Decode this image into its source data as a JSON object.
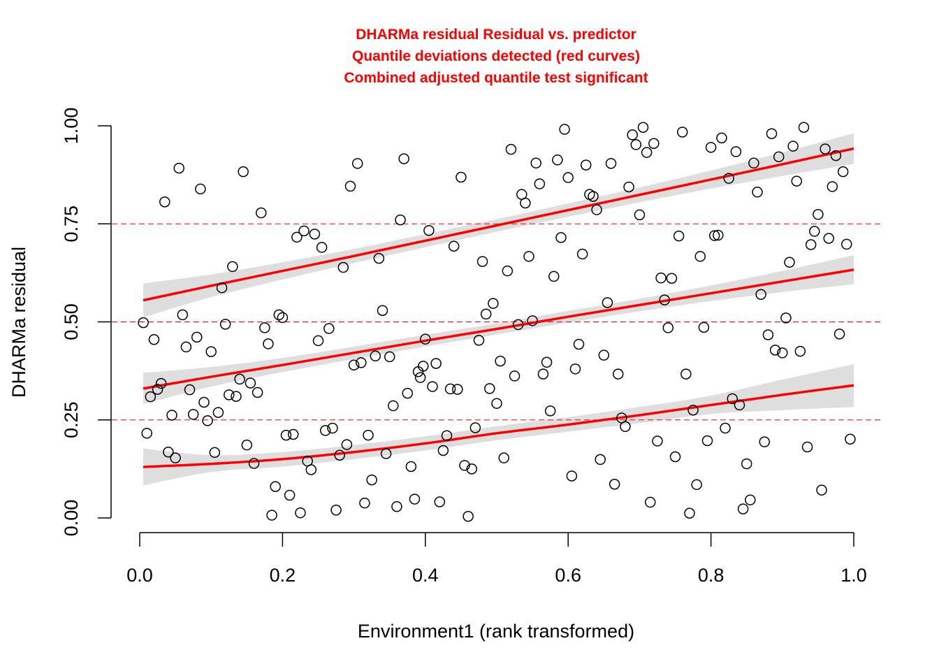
{
  "chart_data": {
    "type": "scatter",
    "title": [
      "DHARMa residual Residual vs. predictor",
      "Quantile deviations detected (red curves)",
      "Combined adjusted quantile test significant"
    ],
    "xlabel": "Environment1 (rank transformed)",
    "ylabel": "DHARMa residual",
    "xlim": [
      0,
      1
    ],
    "ylim": [
      0,
      1
    ],
    "xticks": [
      "0.0",
      "0.2",
      "0.4",
      "0.6",
      "0.8",
      "1.0"
    ],
    "yticks": [
      "0.00",
      "0.25",
      "0.50",
      "0.75",
      "1.00"
    ],
    "grid": false,
    "colors": {
      "title": "#ff0000",
      "curves": "#ff0000",
      "band": "#dedede",
      "points": "#000000",
      "reference": "#ff0000"
    },
    "reference_lines": [
      0.25,
      0.5,
      0.75
    ],
    "points": [
      [
        0.005,
        0.498
      ],
      [
        0.01,
        0.216
      ],
      [
        0.015,
        0.309
      ],
      [
        0.02,
        0.455
      ],
      [
        0.025,
        0.328
      ],
      [
        0.03,
        0.343
      ],
      [
        0.035,
        0.806
      ],
      [
        0.04,
        0.168
      ],
      [
        0.045,
        0.262
      ],
      [
        0.05,
        0.153
      ],
      [
        0.055,
        0.892
      ],
      [
        0.06,
        0.518
      ],
      [
        0.065,
        0.436
      ],
      [
        0.07,
        0.327
      ],
      [
        0.075,
        0.264
      ],
      [
        0.08,
        0.461
      ],
      [
        0.085,
        0.839
      ],
      [
        0.09,
        0.295
      ],
      [
        0.095,
        0.248
      ],
      [
        0.1,
        0.424
      ],
      [
        0.105,
        0.167
      ],
      [
        0.11,
        0.269
      ],
      [
        0.115,
        0.587
      ],
      [
        0.12,
        0.494
      ],
      [
        0.125,
        0.314
      ],
      [
        0.13,
        0.641
      ],
      [
        0.135,
        0.31
      ],
      [
        0.14,
        0.354
      ],
      [
        0.145,
        0.883
      ],
      [
        0.15,
        0.186
      ],
      [
        0.155,
        0.344
      ],
      [
        0.16,
        0.139
      ],
      [
        0.165,
        0.32
      ],
      [
        0.17,
        0.778
      ],
      [
        0.175,
        0.485
      ],
      [
        0.18,
        0.444
      ],
      [
        0.185,
        0.007
      ],
      [
        0.19,
        0.08
      ],
      [
        0.195,
        0.518
      ],
      [
        0.2,
        0.511
      ],
      [
        0.205,
        0.211
      ],
      [
        0.21,
        0.058
      ],
      [
        0.215,
        0.213
      ],
      [
        0.22,
        0.716
      ],
      [
        0.225,
        0.013
      ],
      [
        0.23,
        0.732
      ],
      [
        0.235,
        0.145
      ],
      [
        0.24,
        0.123
      ],
      [
        0.245,
        0.724
      ],
      [
        0.25,
        0.452
      ],
      [
        0.255,
        0.69
      ],
      [
        0.26,
        0.223
      ],
      [
        0.265,
        0.483
      ],
      [
        0.27,
        0.229
      ],
      [
        0.275,
        0.02
      ],
      [
        0.28,
        0.16
      ],
      [
        0.285,
        0.639
      ],
      [
        0.29,
        0.187
      ],
      [
        0.295,
        0.846
      ],
      [
        0.3,
        0.39
      ],
      [
        0.305,
        0.904
      ],
      [
        0.31,
        0.396
      ],
      [
        0.315,
        0.038
      ],
      [
        0.32,
        0.211
      ],
      [
        0.325,
        0.097
      ],
      [
        0.33,
        0.413
      ],
      [
        0.335,
        0.662
      ],
      [
        0.34,
        0.529
      ],
      [
        0.345,
        0.164
      ],
      [
        0.35,
        0.411
      ],
      [
        0.355,
        0.286
      ],
      [
        0.36,
        0.029
      ],
      [
        0.365,
        0.76
      ],
      [
        0.37,
        0.916
      ],
      [
        0.375,
        0.318
      ],
      [
        0.38,
        0.131
      ],
      [
        0.385,
        0.048
      ],
      [
        0.39,
        0.373
      ],
      [
        0.393,
        0.358
      ],
      [
        0.397,
        0.387
      ],
      [
        0.4,
        0.456
      ],
      [
        0.405,
        0.733
      ],
      [
        0.41,
        0.335
      ],
      [
        0.415,
        0.394
      ],
      [
        0.42,
        0.041
      ],
      [
        0.425,
        0.172
      ],
      [
        0.43,
        0.21
      ],
      [
        0.435,
        0.329
      ],
      [
        0.44,
        0.693
      ],
      [
        0.445,
        0.328
      ],
      [
        0.45,
        0.869
      ],
      [
        0.455,
        0.134
      ],
      [
        0.46,
        0.004
      ],
      [
        0.465,
        0.125
      ],
      [
        0.47,
        0.23
      ],
      [
        0.475,
        0.453
      ],
      [
        0.48,
        0.654
      ],
      [
        0.485,
        0.52
      ],
      [
        0.49,
        0.33
      ],
      [
        0.495,
        0.547
      ],
      [
        0.5,
        0.292
      ],
      [
        0.505,
        0.4
      ],
      [
        0.51,
        0.153
      ],
      [
        0.515,
        0.63
      ],
      [
        0.52,
        0.94
      ],
      [
        0.525,
        0.362
      ],
      [
        0.53,
        0.493
      ],
      [
        0.535,
        0.825
      ],
      [
        0.54,
        0.803
      ],
      [
        0.545,
        0.667
      ],
      [
        0.55,
        0.503
      ],
      [
        0.555,
        0.905
      ],
      [
        0.56,
        0.852
      ],
      [
        0.565,
        0.367
      ],
      [
        0.57,
        0.397
      ],
      [
        0.575,
        0.273
      ],
      [
        0.58,
        0.616
      ],
      [
        0.585,
        0.913
      ],
      [
        0.59,
        0.715
      ],
      [
        0.595,
        0.991
      ],
      [
        0.6,
        0.868
      ],
      [
        0.605,
        0.107
      ],
      [
        0.61,
        0.38
      ],
      [
        0.615,
        0.443
      ],
      [
        0.62,
        0.673
      ],
      [
        0.625,
        0.9
      ],
      [
        0.63,
        0.825
      ],
      [
        0.635,
        0.82
      ],
      [
        0.64,
        0.786
      ],
      [
        0.645,
        0.149
      ],
      [
        0.65,
        0.415
      ],
      [
        0.655,
        0.549
      ],
      [
        0.66,
        0.904
      ],
      [
        0.665,
        0.086
      ],
      [
        0.67,
        0.367
      ],
      [
        0.675,
        0.255
      ],
      [
        0.68,
        0.233
      ],
      [
        0.685,
        0.844
      ],
      [
        0.69,
        0.977
      ],
      [
        0.695,
        0.952
      ],
      [
        0.7,
        0.773
      ],
      [
        0.705,
        0.996
      ],
      [
        0.71,
        0.932
      ],
      [
        0.715,
        0.04
      ],
      [
        0.72,
        0.955
      ],
      [
        0.725,
        0.196
      ],
      [
        0.73,
        0.612
      ],
      [
        0.735,
        0.556
      ],
      [
        0.74,
        0.485
      ],
      [
        0.745,
        0.611
      ],
      [
        0.75,
        0.156
      ],
      [
        0.755,
        0.719
      ],
      [
        0.76,
        0.984
      ],
      [
        0.765,
        0.367
      ],
      [
        0.77,
        0.012
      ],
      [
        0.775,
        0.275
      ],
      [
        0.78,
        0.085
      ],
      [
        0.785,
        0.667
      ],
      [
        0.79,
        0.486
      ],
      [
        0.795,
        0.197
      ],
      [
        0.8,
        0.945
      ],
      [
        0.805,
        0.72
      ],
      [
        0.81,
        0.721
      ],
      [
        0.815,
        0.969
      ],
      [
        0.82,
        0.229
      ],
      [
        0.825,
        0.866
      ],
      [
        0.83,
        0.304
      ],
      [
        0.835,
        0.934
      ],
      [
        0.84,
        0.288
      ],
      [
        0.845,
        0.023
      ],
      [
        0.85,
        0.138
      ],
      [
        0.855,
        0.046
      ],
      [
        0.86,
        0.905
      ],
      [
        0.865,
        0.831
      ],
      [
        0.87,
        0.57
      ],
      [
        0.875,
        0.194
      ],
      [
        0.88,
        0.467
      ],
      [
        0.885,
        0.98
      ],
      [
        0.89,
        0.428
      ],
      [
        0.895,
        0.921
      ],
      [
        0.9,
        0.421
      ],
      [
        0.905,
        0.51
      ],
      [
        0.91,
        0.652
      ],
      [
        0.915,
        0.948
      ],
      [
        0.92,
        0.859
      ],
      [
        0.925,
        0.425
      ],
      [
        0.93,
        0.996
      ],
      [
        0.935,
        0.181
      ],
      [
        0.94,
        0.697
      ],
      [
        0.945,
        0.731
      ],
      [
        0.95,
        0.774
      ],
      [
        0.955,
        0.071
      ],
      [
        0.96,
        0.941
      ],
      [
        0.965,
        0.713
      ],
      [
        0.97,
        0.845
      ],
      [
        0.975,
        0.924
      ],
      [
        0.98,
        0.469
      ],
      [
        0.985,
        0.883
      ],
      [
        0.99,
        0.698
      ],
      [
        0.995,
        0.201
      ]
    ],
    "quantile_curves": [
      {
        "quantile": 0.25,
        "fit": [
          [
            0.005,
            0.13
          ],
          [
            0.1,
            0.138
          ],
          [
            0.2,
            0.15
          ],
          [
            0.3,
            0.168
          ],
          [
            0.4,
            0.19
          ],
          [
            0.5,
            0.216
          ],
          [
            0.6,
            0.238
          ],
          [
            0.7,
            0.262
          ],
          [
            0.8,
            0.288
          ],
          [
            0.9,
            0.314
          ],
          [
            1.0,
            0.338
          ]
        ],
        "lower": [
          [
            0.005,
            0.083
          ],
          [
            0.1,
            0.117
          ],
          [
            0.2,
            0.131
          ],
          [
            0.3,
            0.15
          ],
          [
            0.4,
            0.172
          ],
          [
            0.5,
            0.198
          ],
          [
            0.6,
            0.22
          ],
          [
            0.7,
            0.242
          ],
          [
            0.8,
            0.265
          ],
          [
            0.9,
            0.275
          ],
          [
            1.0,
            0.283
          ]
        ],
        "upper": [
          [
            0.005,
            0.177
          ],
          [
            0.1,
            0.16
          ],
          [
            0.2,
            0.168
          ],
          [
            0.3,
            0.186
          ],
          [
            0.4,
            0.208
          ],
          [
            0.5,
            0.234
          ],
          [
            0.6,
            0.257
          ],
          [
            0.7,
            0.283
          ],
          [
            0.8,
            0.312
          ],
          [
            0.9,
            0.353
          ],
          [
            1.0,
            0.392
          ]
        ]
      },
      {
        "quantile": 0.5,
        "fit": [
          [
            0.005,
            0.33
          ],
          [
            0.1,
            0.36
          ],
          [
            0.2,
            0.39
          ],
          [
            0.3,
            0.421
          ],
          [
            0.4,
            0.452
          ],
          [
            0.5,
            0.482
          ],
          [
            0.6,
            0.513
          ],
          [
            0.7,
            0.543
          ],
          [
            0.8,
            0.573
          ],
          [
            0.9,
            0.603
          ],
          [
            1.0,
            0.633
          ]
        ],
        "lower": [
          [
            0.005,
            0.29
          ],
          [
            0.1,
            0.335
          ],
          [
            0.2,
            0.372
          ],
          [
            0.3,
            0.405
          ],
          [
            0.4,
            0.437
          ],
          [
            0.5,
            0.468
          ],
          [
            0.6,
            0.498
          ],
          [
            0.7,
            0.527
          ],
          [
            0.8,
            0.553
          ],
          [
            0.9,
            0.576
          ],
          [
            1.0,
            0.596
          ]
        ],
        "upper": [
          [
            0.005,
            0.37
          ],
          [
            0.1,
            0.385
          ],
          [
            0.2,
            0.408
          ],
          [
            0.3,
            0.437
          ],
          [
            0.4,
            0.467
          ],
          [
            0.5,
            0.496
          ],
          [
            0.6,
            0.528
          ],
          [
            0.7,
            0.559
          ],
          [
            0.8,
            0.593
          ],
          [
            0.9,
            0.63
          ],
          [
            1.0,
            0.67
          ]
        ]
      },
      {
        "quantile": 0.75,
        "fit": [
          [
            0.005,
            0.555
          ],
          [
            0.1,
            0.592
          ],
          [
            0.2,
            0.63
          ],
          [
            0.3,
            0.668
          ],
          [
            0.4,
            0.707
          ],
          [
            0.5,
            0.746
          ],
          [
            0.6,
            0.785
          ],
          [
            0.7,
            0.824
          ],
          [
            0.8,
            0.863
          ],
          [
            0.9,
            0.902
          ],
          [
            1.0,
            0.942
          ]
        ],
        "lower": [
          [
            0.005,
            0.512
          ],
          [
            0.1,
            0.563
          ],
          [
            0.2,
            0.608
          ],
          [
            0.3,
            0.65
          ],
          [
            0.4,
            0.69
          ],
          [
            0.5,
            0.73
          ],
          [
            0.6,
            0.768
          ],
          [
            0.7,
            0.805
          ],
          [
            0.8,
            0.84
          ],
          [
            0.9,
            0.872
          ],
          [
            1.0,
            0.903
          ]
        ],
        "upper": [
          [
            0.005,
            0.598
          ],
          [
            0.1,
            0.621
          ],
          [
            0.2,
            0.652
          ],
          [
            0.3,
            0.686
          ],
          [
            0.4,
            0.724
          ],
          [
            0.5,
            0.762
          ],
          [
            0.6,
            0.802
          ],
          [
            0.7,
            0.843
          ],
          [
            0.8,
            0.886
          ],
          [
            0.9,
            0.932
          ],
          [
            1.0,
            0.981
          ]
        ]
      }
    ]
  }
}
